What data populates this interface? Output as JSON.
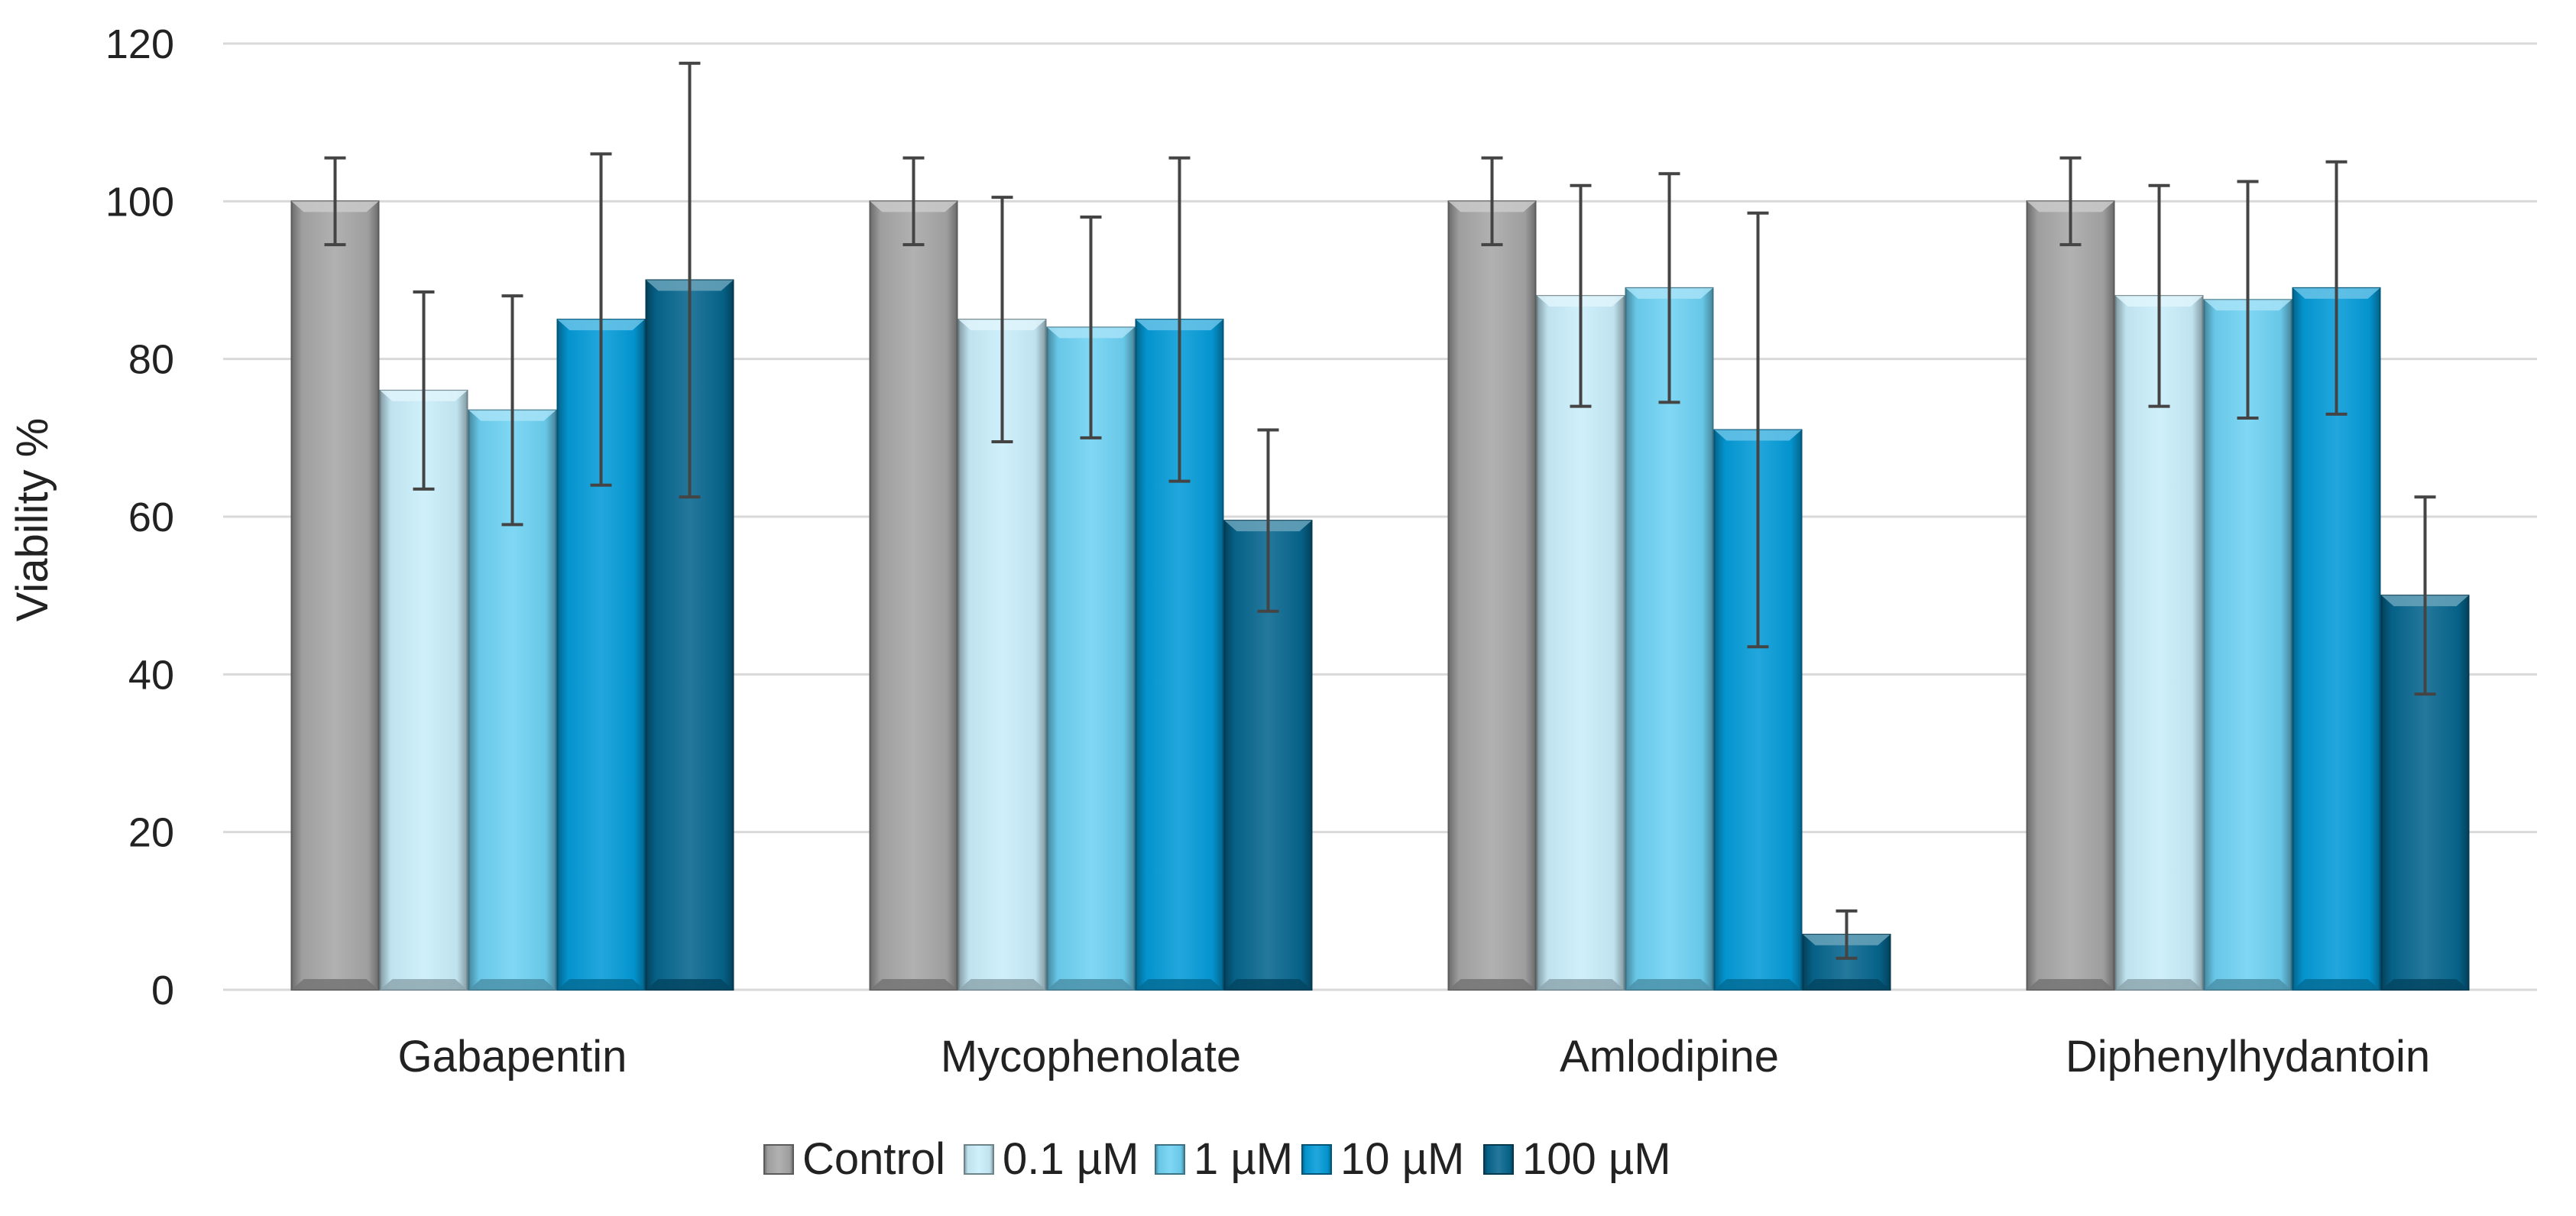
{
  "chart_data": {
    "type": "bar",
    "title": "",
    "xlabel": "",
    "ylabel": "Viability %",
    "ylim": [
      0,
      120
    ],
    "yticks": [
      0,
      20,
      40,
      60,
      80,
      100,
      120
    ],
    "grid": true,
    "legend_position": "bottom",
    "categories": [
      "Gabapentin",
      "Mycophenolate",
      "Amlodipine",
      "Diphenylhydantoin"
    ],
    "series": [
      {
        "name": "Control",
        "color": "#a6a6a6",
        "values": [
          100,
          100,
          100,
          100
        ],
        "errors": [
          5.5,
          5.5,
          5.5,
          5.5
        ]
      },
      {
        "name": "0.1 µM",
        "color": "#c9eefa",
        "values": [
          76,
          85,
          88,
          88
        ],
        "errors": [
          12.5,
          15.5,
          14,
          14
        ]
      },
      {
        "name": "1 µM",
        "color": "#6dd1f3",
        "values": [
          73.5,
          84,
          89,
          87.5
        ],
        "errors": [
          14.5,
          14,
          14.5,
          15
        ]
      },
      {
        "name": "10 µM",
        "color": "#049bd8",
        "values": [
          85,
          85,
          71,
          89
        ],
        "errors": [
          21,
          20.5,
          27.5,
          16
        ]
      },
      {
        "name": "100 µM",
        "color": "#06668e",
        "values": [
          90,
          59.5,
          7,
          50
        ],
        "errors": [
          27.5,
          11.5,
          3,
          12.5
        ]
      }
    ]
  }
}
